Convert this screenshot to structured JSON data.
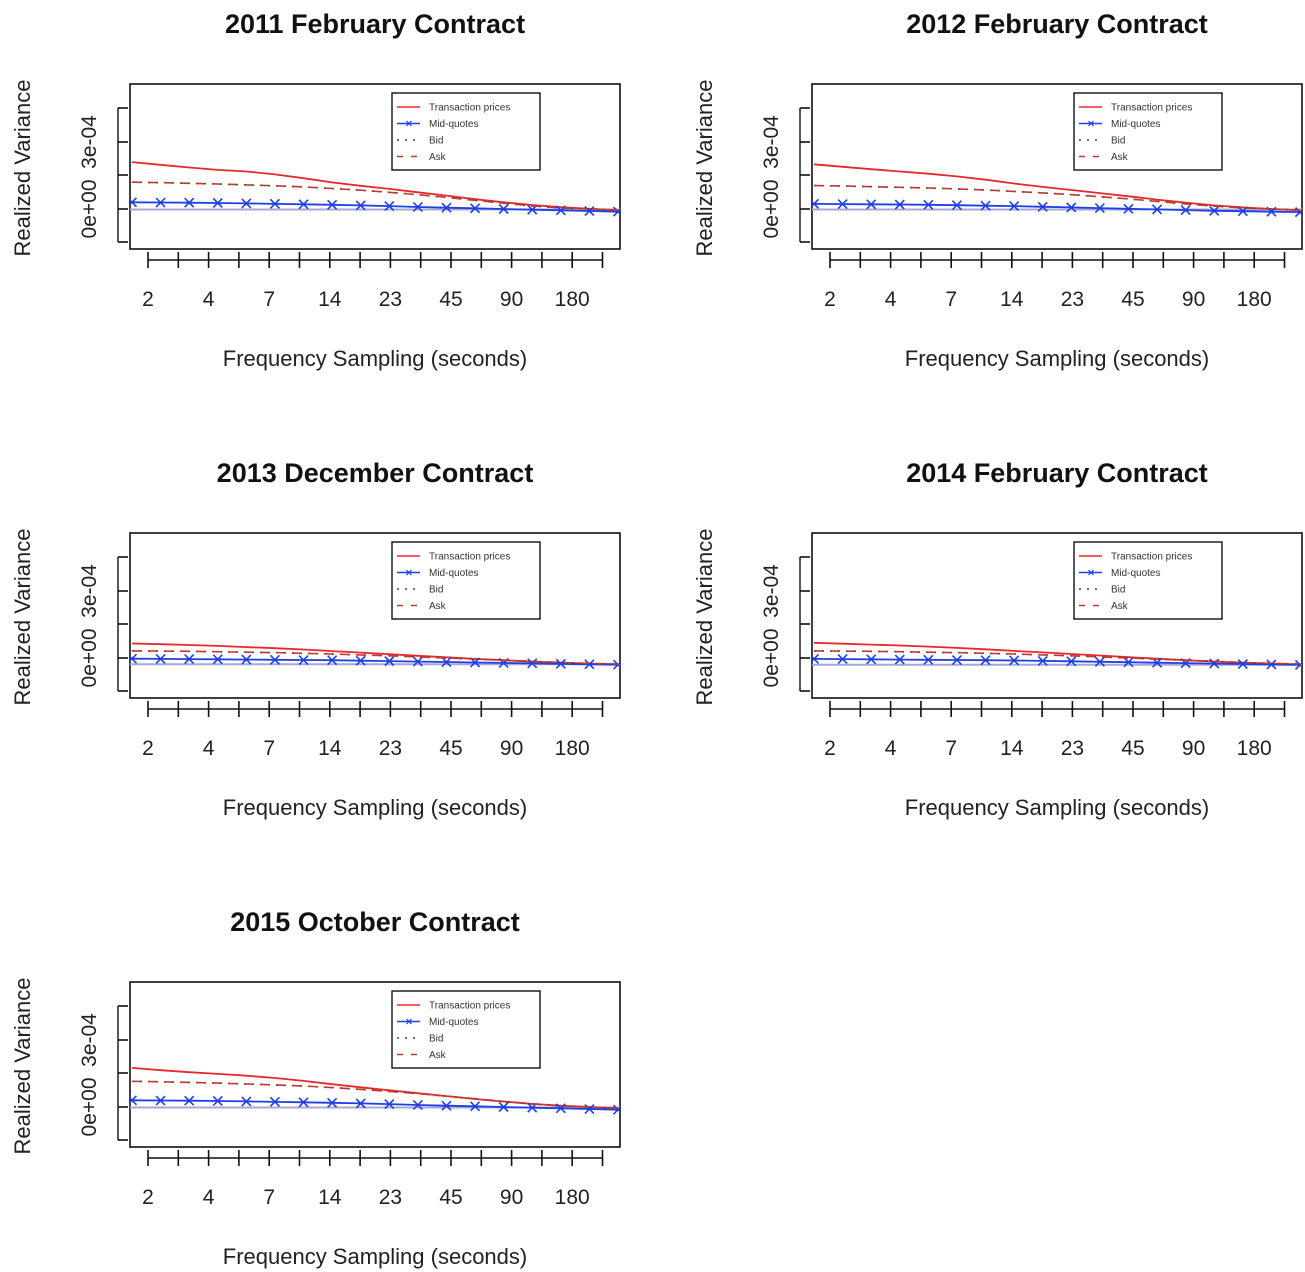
{
  "chart_data": [
    {
      "type": "line",
      "title": "2011 February Contract",
      "xlabel": "Frequency Sampling (seconds)",
      "ylabel": "Realized Variance",
      "x_tick_labels": [
        "2",
        "4",
        "7",
        "14",
        "23",
        "45",
        "90",
        "180"
      ],
      "y_tick_labels": [
        "0e+00",
        "3e-04"
      ],
      "ylim": [
        -8e-05,
        0.0004
      ],
      "legend": [
        "Transaction prices",
        "Mid-quotes",
        "Bid",
        "Ask"
      ],
      "legend_position": "top-right",
      "reference_line": -2e-06,
      "series": [
        {
          "name": "Transaction prices",
          "values": [
            0.00021,
            0.000198,
            0.000186,
            0.000175,
            0.000168,
            0.000155,
            0.000138,
            0.000119,
            0.000104,
            9e-05,
            7.5e-05,
            6e-05,
            4.4e-05,
            3e-05,
            1.8e-05,
            8e-06,
            1e-06,
            -5e-06
          ]
        },
        {
          "name": "Mid-quotes",
          "values": [
            3e-05,
            2.9e-05,
            2.8e-05,
            2.7e-05,
            2.5e-05,
            2.3e-05,
            2.1e-05,
            1.9e-05,
            1.6e-05,
            1.3e-05,
            9e-06,
            6e-06,
            3e-06,
            0.0,
            -3e-06,
            -6e-06,
            -9e-06,
            -1.2e-05
          ]
        },
        {
          "name": "Bid",
          "values": [
            0.00012,
            0.000118,
            0.000115,
            0.000112,
            0.000108,
            0.000104,
            9.9e-05,
            9.2e-05,
            8.4e-05,
            7.5e-05,
            6.4e-05,
            5.2e-05,
            3.9e-05,
            2.6e-05,
            1.4e-05,
            5e-06,
            0.0,
            -5e-06
          ]
        },
        {
          "name": "Ask",
          "values": [
            0.00012,
            0.000118,
            0.000115,
            0.000112,
            0.000108,
            0.000104,
            9.9e-05,
            9.2e-05,
            8.4e-05,
            7.5e-05,
            6.4e-05,
            5.2e-05,
            3.9e-05,
            2.6e-05,
            1.4e-05,
            5e-06,
            0.0,
            -5e-06
          ]
        }
      ]
    },
    {
      "type": "line",
      "title": "2012 February Contract",
      "xlabel": "Frequency Sampling (seconds)",
      "ylabel": "Realized Variance",
      "x_tick_labels": [
        "2",
        "4",
        "7",
        "14",
        "23",
        "45",
        "90",
        "180"
      ],
      "y_tick_labels": [
        "0e+00",
        "3e-04"
      ],
      "ylim": [
        -8e-05,
        0.0004
      ],
      "legend": [
        "Transaction prices",
        "Mid-quotes",
        "Bid",
        "Ask"
      ],
      "legend_position": "top-right",
      "reference_line": -2e-06,
      "series": [
        {
          "name": "Transaction prices",
          "values": [
            0.0002,
            0.000189,
            0.000178,
            0.000168,
            0.000158,
            0.000146,
            0.000131,
            0.000114,
            9.9e-05,
            8.5e-05,
            7.1e-05,
            5.7e-05,
            4.2e-05,
            2.8e-05,
            1.6e-05,
            7e-06,
            0.0,
            -6e-06
          ]
        },
        {
          "name": "Mid-quotes",
          "values": [
            2.3e-05,
            2.2e-05,
            2.1e-05,
            2e-05,
            1.9e-05,
            1.7e-05,
            1.5e-05,
            1.3e-05,
            1e-05,
            7e-06,
            4e-06,
            1e-06,
            -2e-06,
            -5e-06,
            -8e-06,
            -1e-05,
            -1.2e-05,
            -1.4e-05
          ]
        },
        {
          "name": "Bid",
          "values": [
            0.000105,
            0.000103,
            0.0001,
            9.7e-05,
            9.4e-05,
            9e-05,
            8.5e-05,
            7.9e-05,
            7.2e-05,
            6.4e-05,
            5.5e-05,
            4.5e-05,
            3.4e-05,
            2.3e-05,
            1.3e-05,
            5e-06,
            0.0,
            -5e-06
          ]
        },
        {
          "name": "Ask",
          "values": [
            0.000105,
            0.000103,
            0.0001,
            9.7e-05,
            9.4e-05,
            9e-05,
            8.5e-05,
            7.9e-05,
            7.2e-05,
            6.4e-05,
            5.5e-05,
            4.5e-05,
            3.4e-05,
            2.3e-05,
            1.3e-05,
            5e-06,
            0.0,
            -5e-06
          ]
        }
      ]
    },
    {
      "type": "line",
      "title": "2013 December Contract",
      "xlabel": "Frequency Sampling (seconds)",
      "ylabel": "Realized Variance",
      "x_tick_labels": [
        "2",
        "4",
        "7",
        "14",
        "23",
        "45",
        "90",
        "180"
      ],
      "y_tick_labels": [
        "0e+00",
        "3e-04"
      ],
      "ylim": [
        -8e-05,
        0.0004
      ],
      "legend": [
        "Transaction prices",
        "Mid-quotes",
        "Bid",
        "Ask"
      ],
      "legend_position": "top-right",
      "reference_line": -2.8e-05,
      "series": [
        {
          "name": "Transaction prices",
          "values": [
            6.5e-05,
            6.2e-05,
            5.8e-05,
            5.4e-05,
            4.9e-05,
            4.4e-05,
            3.8e-05,
            3.1e-05,
            2.4e-05,
            1.7e-05,
            1e-05,
            3e-06,
            -4e-06,
            -1e-05,
            -1.6e-05,
            -2.1e-05,
            -2.5e-05,
            -2.8e-05
          ]
        },
        {
          "name": "Mid-quotes",
          "values": [
            -3e-06,
            -4e-06,
            -5e-06,
            -6e-06,
            -7e-06,
            -8e-06,
            -9e-06,
            -1e-05,
            -1.2e-05,
            -1.4e-05,
            -1.6e-05,
            -1.8e-05,
            -2e-05,
            -2.2e-05,
            -2.4e-05,
            -2.6e-05,
            -2.8e-05,
            -3e-05
          ]
        },
        {
          "name": "Bid",
          "values": [
            3.2e-05,
            3.1e-05,
            3e-05,
            2.8e-05,
            2.6e-05,
            2.4e-05,
            2.1e-05,
            1.8e-05,
            1.4e-05,
            1e-05,
            5e-06,
            0.0,
            -5e-06,
            -1e-05,
            -1.5e-05,
            -2e-05,
            -2.4e-05,
            -2.7e-05
          ]
        },
        {
          "name": "Ask",
          "values": [
            3.2e-05,
            3.1e-05,
            3e-05,
            2.8e-05,
            2.6e-05,
            2.4e-05,
            2.1e-05,
            1.8e-05,
            1.4e-05,
            1e-05,
            5e-06,
            0.0,
            -5e-06,
            -1e-05,
            -1.5e-05,
            -2e-05,
            -2.4e-05,
            -2.7e-05
          ]
        }
      ]
    },
    {
      "type": "line",
      "title": "2014 February Contract",
      "xlabel": "Frequency Sampling (seconds)",
      "ylabel": "Realized Variance",
      "x_tick_labels": [
        "2",
        "4",
        "7",
        "14",
        "23",
        "45",
        "90",
        "180"
      ],
      "y_tick_labels": [
        "0e+00",
        "3e-04"
      ],
      "ylim": [
        -8e-05,
        0.0004
      ],
      "legend": [
        "Transaction prices",
        "Mid-quotes",
        "Bid",
        "Ask"
      ],
      "legend_position": "top-right",
      "reference_line": -3e-05,
      "series": [
        {
          "name": "Transaction prices",
          "values": [
            6.8e-05,
            6.4e-05,
            6e-05,
            5.6e-05,
            5.1e-05,
            4.5e-05,
            3.9e-05,
            3.2e-05,
            2.5e-05,
            1.8e-05,
            1.1e-05,
            4e-06,
            -3e-06,
            -1e-05,
            -1.6e-05,
            -2.1e-05,
            -2.5e-05,
            -2.8e-05
          ]
        },
        {
          "name": "Mid-quotes",
          "values": [
            -4e-06,
            -5e-06,
            -6e-06,
            -7e-06,
            -8e-06,
            -9e-06,
            -1e-05,
            -1.1e-05,
            -1.3e-05,
            -1.5e-05,
            -1.7e-05,
            -1.9e-05,
            -2.1e-05,
            -2.3e-05,
            -2.5e-05,
            -2.7e-05,
            -2.9e-05,
            -3.1e-05
          ]
        },
        {
          "name": "Bid",
          "values": [
            3.2e-05,
            3.1e-05,
            3e-05,
            2.8e-05,
            2.6e-05,
            2.4e-05,
            2.1e-05,
            1.8e-05,
            1.4e-05,
            1e-05,
            5e-06,
            0.0,
            -5e-06,
            -1e-05,
            -1.5e-05,
            -2e-05,
            -2.4e-05,
            -2.7e-05
          ]
        },
        {
          "name": "Ask",
          "values": [
            3.2e-05,
            3.1e-05,
            3e-05,
            2.8e-05,
            2.6e-05,
            2.4e-05,
            2.1e-05,
            1.8e-05,
            1.4e-05,
            1e-05,
            5e-06,
            0.0,
            -5e-06,
            -1e-05,
            -1.5e-05,
            -2e-05,
            -2.4e-05,
            -2.7e-05
          ]
        }
      ]
    },
    {
      "type": "line",
      "title": "2015 October Contract",
      "xlabel": "Frequency Sampling (seconds)",
      "ylabel": "Realized Variance",
      "x_tick_labels": [
        "2",
        "4",
        "7",
        "14",
        "23",
        "45",
        "90",
        "180"
      ],
      "y_tick_labels": [
        "0e+00",
        "3e-04"
      ],
      "ylim": [
        -8e-05,
        0.0004
      ],
      "legend": [
        "Transaction prices",
        "Mid-quotes",
        "Bid",
        "Ask"
      ],
      "legend_position": "top-right",
      "reference_line": -2e-06,
      "series": [
        {
          "name": "Transaction prices",
          "values": [
            0.000175,
            0.000165,
            0.000156,
            0.000148,
            0.00014,
            0.00013,
            0.000117,
            0.000102,
            8.8e-05,
            7.5e-05,
            6.2e-05,
            4.9e-05,
            3.6e-05,
            2.4e-05,
            1.4e-05,
            6e-06,
            0.0,
            -5e-06
          ]
        },
        {
          "name": "Mid-quotes",
          "values": [
            3e-05,
            2.9e-05,
            2.8e-05,
            2.7e-05,
            2.5e-05,
            2.3e-05,
            2.1e-05,
            1.9e-05,
            1.6e-05,
            1.3e-05,
            9e-06,
            6e-06,
            3e-06,
            0.0,
            -3e-06,
            -6e-06,
            -9e-06,
            -1.2e-05
          ]
        },
        {
          "name": "Bid",
          "values": [
            0.000115,
            0.000113,
            0.00011,
            0.000107,
            0.000103,
            9.9e-05,
            9.4e-05,
            8.7e-05,
            7.9e-05,
            7e-05,
            6e-05,
            4.9e-05,
            3.7e-05,
            2.5e-05,
            1.4e-05,
            5e-06,
            0.0,
            -5e-06
          ]
        },
        {
          "name": "Ask",
          "values": [
            0.000115,
            0.000113,
            0.00011,
            0.000107,
            0.000103,
            9.9e-05,
            9.4e-05,
            8.7e-05,
            7.9e-05,
            7e-05,
            6e-05,
            4.9e-05,
            3.7e-05,
            2.5e-05,
            1.4e-05,
            5e-06,
            0.0,
            -5e-06
          ]
        }
      ]
    }
  ],
  "colors": {
    "transaction": "#e8282b",
    "midquote": "#1f3fe6",
    "bid": "#444444",
    "ask": "#c0392b",
    "reference": "#a7a7d9"
  }
}
